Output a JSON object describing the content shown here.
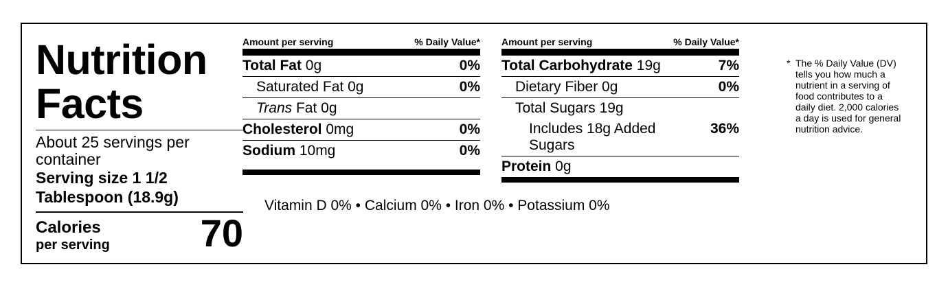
{
  "panel": {
    "title_line1": "Nutrition",
    "title_line2": "Facts",
    "servings_per_container": "About 25 servings per container",
    "serving_size": "Serving size 1 1/2 Tablespoon (18.9g)",
    "calories_label": "Calories",
    "calories_sub": "per serving",
    "calories_value": "70"
  },
  "table_left": {
    "header_amount": "Amount per serving",
    "header_dv": "% Daily Value*",
    "rows": [
      {
        "name": "Total Fat",
        "amount": " 0g",
        "dv": "0%"
      },
      {
        "name": "Saturated Fat",
        "amount": " 0g",
        "dv": "0%"
      },
      {
        "name": "Trans",
        "amount": " Fat 0g",
        "dv": ""
      },
      {
        "name": "Cholesterol",
        "amount": " 0mg",
        "dv": "0%"
      },
      {
        "name": "Sodium",
        "amount": " 10mg",
        "dv": "0%"
      }
    ]
  },
  "table_right": {
    "header_amount": "Amount per serving",
    "header_dv": "% Daily Value*",
    "rows": [
      {
        "name": "Total Carbohydrate",
        "amount": " 19g",
        "dv": "7%"
      },
      {
        "name": "Dietary Fiber",
        "amount": " 0g",
        "dv": "0%"
      },
      {
        "name": "Total Sugars",
        "amount": " 19g",
        "dv": ""
      },
      {
        "name": "Includes 18g Added Sugars",
        "amount": "",
        "dv": "36%"
      },
      {
        "name": "Protein",
        "amount": " 0g",
        "dv": ""
      }
    ]
  },
  "vitamins": "Vitamin D 0% • Calcium 0% • Iron 0% • Potassium 0%",
  "footnote": {
    "star": "*",
    "text": "The % Daily Value (DV) tells you how much a nutrient in a serving of food contributes to a daily diet. 2,000 calories a day is used for general nutrition advice."
  }
}
